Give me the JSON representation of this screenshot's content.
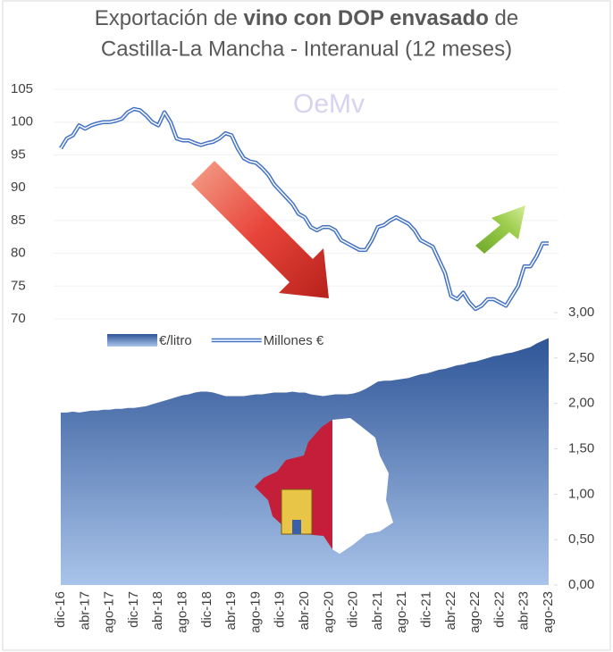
{
  "chart_data": {
    "type": "line",
    "title": [
      "Exportación de ",
      "vino con DOP envasado",
      " de",
      "Castilla-La Mancha - Interanual (12 meses)"
    ],
    "watermark": "OeMv",
    "categories": [
      "dic-16",
      null,
      null,
      null,
      "abr-17",
      null,
      null,
      null,
      "ago-17",
      null,
      null,
      null,
      "dic-17",
      null,
      null,
      null,
      "abr-18",
      null,
      null,
      null,
      "ago-18",
      null,
      null,
      null,
      "dic-18",
      null,
      null,
      null,
      "abr-19",
      null,
      null,
      null,
      "ago-19",
      null,
      null,
      null,
      "dic-19",
      null,
      null,
      null,
      "abr-20",
      null,
      null,
      null,
      "ago-20",
      null,
      null,
      null,
      "dic-20",
      null,
      null,
      null,
      "abr-21",
      null,
      null,
      null,
      "ago-21",
      null,
      null,
      null,
      "dic-21",
      null,
      null,
      null,
      "abr-22",
      null,
      null,
      null,
      "ago-22",
      null,
      null,
      null,
      "dic-22",
      null,
      null,
      null,
      "abr-23",
      null,
      null,
      null,
      "ago-23"
    ],
    "series": [
      {
        "name": "€/litro",
        "type": "area",
        "axis": "y2",
        "color": "#2f5597",
        "values": [
          1.9,
          1.9,
          1.91,
          1.9,
          1.91,
          1.92,
          1.92,
          1.93,
          1.93,
          1.94,
          1.94,
          1.95,
          1.95,
          1.96,
          1.97,
          1.99,
          2.01,
          2.03,
          2.05,
          2.07,
          2.09,
          2.1,
          2.12,
          2.13,
          2.13,
          2.12,
          2.1,
          2.08,
          2.08,
          2.08,
          2.08,
          2.09,
          2.1,
          2.1,
          2.11,
          2.12,
          2.12,
          2.12,
          2.13,
          2.12,
          2.12,
          2.1,
          2.09,
          2.08,
          2.09,
          2.1,
          2.1,
          2.1,
          2.11,
          2.13,
          2.16,
          2.2,
          2.24,
          2.25,
          2.25,
          2.26,
          2.27,
          2.28,
          2.3,
          2.32,
          2.33,
          2.35,
          2.37,
          2.38,
          2.4,
          2.42,
          2.43,
          2.45,
          2.46,
          2.48,
          2.5,
          2.52,
          2.53,
          2.55,
          2.56,
          2.58,
          2.6,
          2.62,
          2.66,
          2.69,
          2.72
        ]
      },
      {
        "name": "Millones €",
        "type": "line",
        "color": "#4472c4",
        "values": [
          96,
          97.5,
          98,
          99.5,
          99,
          99.5,
          99.8,
          100,
          100,
          100.2,
          100.5,
          101.5,
          102,
          101.8,
          101,
          100,
          99.5,
          101.5,
          100,
          97.5,
          97.2,
          97.2,
          96.8,
          96.5,
          96.8,
          97,
          97.5,
          98.3,
          98,
          96,
          94.5,
          94,
          93.8,
          93,
          92,
          90.5,
          89.5,
          88.5,
          87.5,
          86,
          85.5,
          84,
          83.5,
          84,
          84,
          83.5,
          82,
          81.5,
          81,
          80.5,
          80.5,
          82,
          84,
          84.3,
          85,
          85.5,
          85,
          84.5,
          83.5,
          82,
          81.5,
          81,
          79,
          77,
          73.5,
          73,
          74,
          72.5,
          71.5,
          72,
          73,
          73,
          72.5,
          72,
          73.5,
          75,
          78,
          78,
          79.5,
          81.5,
          81.5
        ]
      }
    ],
    "ylim": [
      70,
      105
    ],
    "yticks": [
      70,
      75,
      80,
      85,
      90,
      95,
      100,
      105
    ],
    "y2lim": [
      0,
      3
    ],
    "y2ticks": [
      {
        "value": 0,
        "label": "0,00"
      },
      {
        "value": 0.5,
        "label": "0,50"
      },
      {
        "value": 1,
        "label": "1,00"
      },
      {
        "value": 1.5,
        "label": "1,50"
      },
      {
        "value": 2,
        "label": "2,00"
      },
      {
        "value": 2.5,
        "label": "2,50"
      },
      {
        "value": 3,
        "label": "3,00"
      }
    ],
    "grid": true
  }
}
